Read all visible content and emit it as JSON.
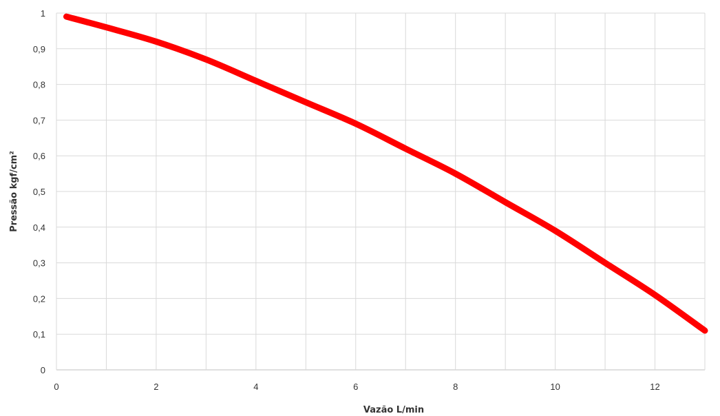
{
  "chart_data": {
    "type": "line",
    "title": "",
    "xlabel": "Vazão L/min",
    "ylabel": "Pressão kgf/cm²",
    "xlim": [
      0,
      13
    ],
    "ylim": [
      0,
      1
    ],
    "grid": true,
    "legend": "none",
    "x_ticks": [
      {
        "value": 0,
        "label": "0"
      },
      {
        "value": 2,
        "label": "2"
      },
      {
        "value": 4,
        "label": "4"
      },
      {
        "value": 6,
        "label": "6"
      },
      {
        "value": 8,
        "label": "8"
      },
      {
        "value": 10,
        "label": "10"
      },
      {
        "value": 12,
        "label": "12"
      }
    ],
    "y_ticks": [
      {
        "value": 0,
        "label": "0"
      },
      {
        "value": 0.1,
        "label": "0,1"
      },
      {
        "value": 0.2,
        "label": "0,2"
      },
      {
        "value": 0.3,
        "label": "0,3"
      },
      {
        "value": 0.4,
        "label": "0,4"
      },
      {
        "value": 0.5,
        "label": "0,5"
      },
      {
        "value": 0.6,
        "label": "0,6"
      },
      {
        "value": 0.7,
        "label": "0,7"
      },
      {
        "value": 0.8,
        "label": "0,8"
      },
      {
        "value": 0.9,
        "label": "0,9"
      },
      {
        "value": 1,
        "label": "1"
      }
    ],
    "x_grid_values": [
      0,
      1,
      2,
      3,
      4,
      5,
      6,
      7,
      8,
      9,
      10,
      11,
      12,
      13
    ],
    "series": [
      {
        "color": "#ff0000",
        "x": [
          0.2,
          1,
          2,
          3,
          4,
          5,
          6,
          7,
          8,
          9,
          10,
          11,
          12,
          13
        ],
        "y": [
          0.99,
          0.96,
          0.92,
          0.87,
          0.81,
          0.75,
          0.69,
          0.62,
          0.55,
          0.47,
          0.39,
          0.3,
          0.21,
          0.11
        ]
      }
    ]
  }
}
